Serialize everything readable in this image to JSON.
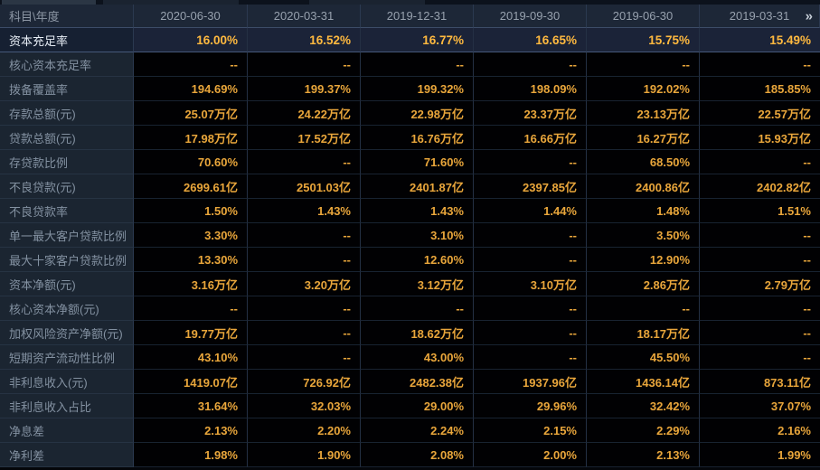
{
  "theme": {
    "header_bg": "#1d2737",
    "label_bg": "#1b2531",
    "cell_bg": "#010103",
    "highlight_bg": "#1b2338",
    "accent_value": "#e9a63b",
    "highlight_value": "#ffb93f",
    "label_color": "#8391a1",
    "highlight_label_color": "#e8eef6",
    "tab_active_color": "#2b3644"
  },
  "table": {
    "corner_label": "科目\\年度",
    "next_icon": "»",
    "columns": [
      "2020-06-30",
      "2020-03-31",
      "2019-12-31",
      "2019-09-30",
      "2019-06-30",
      "2019-03-31"
    ],
    "rows": [
      {
        "label": "资本充足率",
        "highlighted": true,
        "values": [
          "16.00%",
          "16.52%",
          "16.77%",
          "16.65%",
          "15.75%",
          "15.49%"
        ]
      },
      {
        "label": "核心资本充足率",
        "highlighted": false,
        "values": [
          "--",
          "--",
          "--",
          "--",
          "--",
          "--"
        ]
      },
      {
        "label": "拨备覆盖率",
        "highlighted": false,
        "values": [
          "194.69%",
          "199.37%",
          "199.32%",
          "198.09%",
          "192.02%",
          "185.85%"
        ]
      },
      {
        "label": "存款总额(元)",
        "highlighted": false,
        "values": [
          "25.07万亿",
          "24.22万亿",
          "22.98万亿",
          "23.37万亿",
          "23.13万亿",
          "22.57万亿"
        ]
      },
      {
        "label": "贷款总额(元)",
        "highlighted": false,
        "values": [
          "17.98万亿",
          "17.52万亿",
          "16.76万亿",
          "16.66万亿",
          "16.27万亿",
          "15.93万亿"
        ]
      },
      {
        "label": "存贷款比例",
        "highlighted": false,
        "values": [
          "70.60%",
          "--",
          "71.60%",
          "--",
          "68.50%",
          "--"
        ]
      },
      {
        "label": "不良贷款(元)",
        "highlighted": false,
        "values": [
          "2699.61亿",
          "2501.03亿",
          "2401.87亿",
          "2397.85亿",
          "2400.86亿",
          "2402.82亿"
        ]
      },
      {
        "label": "不良贷款率",
        "highlighted": false,
        "values": [
          "1.50%",
          "1.43%",
          "1.43%",
          "1.44%",
          "1.48%",
          "1.51%"
        ]
      },
      {
        "label": "单一最大客户贷款比例",
        "highlighted": false,
        "values": [
          "3.30%",
          "--",
          "3.10%",
          "--",
          "3.50%",
          "--"
        ]
      },
      {
        "label": "最大十家客户贷款比例",
        "highlighted": false,
        "values": [
          "13.30%",
          "--",
          "12.60%",
          "--",
          "12.90%",
          "--"
        ]
      },
      {
        "label": "资本净额(元)",
        "highlighted": false,
        "values": [
          "3.16万亿",
          "3.20万亿",
          "3.12万亿",
          "3.10万亿",
          "2.86万亿",
          "2.79万亿"
        ]
      },
      {
        "label": "核心资本净额(元)",
        "highlighted": false,
        "values": [
          "--",
          "--",
          "--",
          "--",
          "--",
          "--"
        ]
      },
      {
        "label": "加权风险资产净额(元)",
        "highlighted": false,
        "values": [
          "19.77万亿",
          "--",
          "18.62万亿",
          "--",
          "18.17万亿",
          "--"
        ]
      },
      {
        "label": "短期资产流动性比例",
        "highlighted": false,
        "values": [
          "43.10%",
          "--",
          "43.00%",
          "--",
          "45.50%",
          "--"
        ]
      },
      {
        "label": "非利息收入(元)",
        "highlighted": false,
        "values": [
          "1419.07亿",
          "726.92亿",
          "2482.38亿",
          "1937.96亿",
          "1436.14亿",
          "873.11亿"
        ]
      },
      {
        "label": "非利息收入占比",
        "highlighted": false,
        "values": [
          "31.64%",
          "32.03%",
          "29.00%",
          "29.96%",
          "32.42%",
          "37.07%"
        ]
      },
      {
        "label": "净息差",
        "highlighted": false,
        "values": [
          "2.13%",
          "2.20%",
          "2.24%",
          "2.15%",
          "2.29%",
          "2.16%"
        ]
      },
      {
        "label": "净利差",
        "highlighted": false,
        "values": [
          "1.98%",
          "1.90%",
          "2.08%",
          "2.00%",
          "2.13%",
          "1.99%"
        ]
      }
    ]
  }
}
